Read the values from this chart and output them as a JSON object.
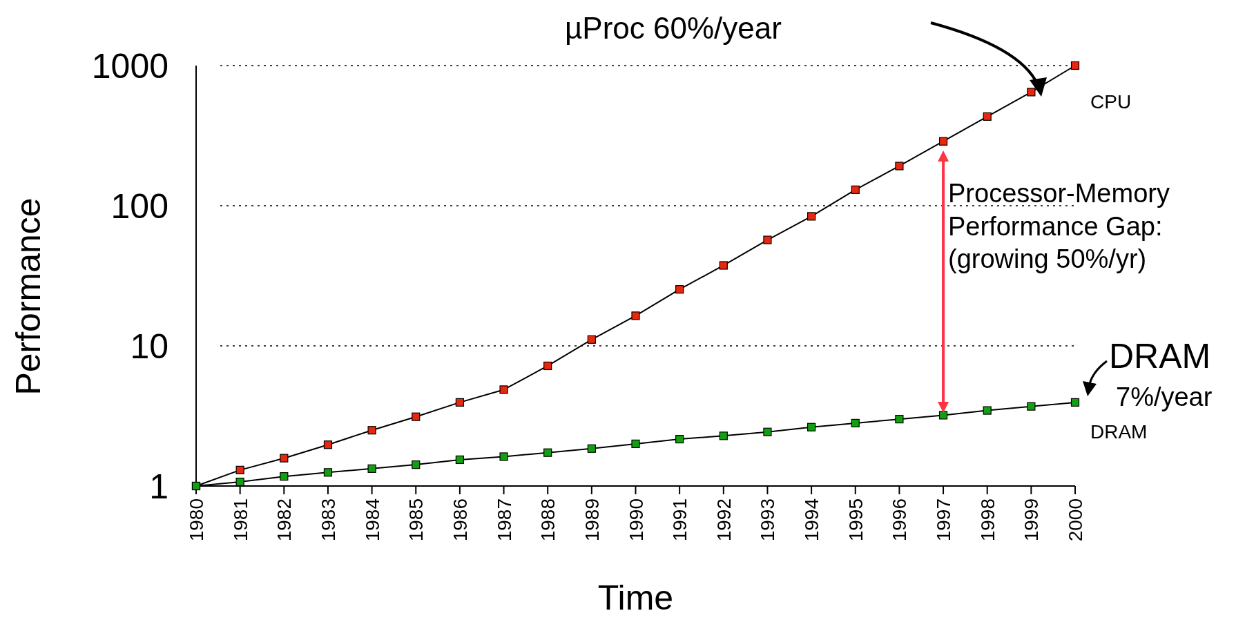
{
  "chart_data": {
    "type": "line",
    "xlabel": "Time",
    "ylabel": "Performance",
    "x": [
      1980,
      1981,
      1982,
      1983,
      1984,
      1985,
      1986,
      1987,
      1988,
      1989,
      1990,
      1991,
      1992,
      1993,
      1994,
      1995,
      1996,
      1997,
      1998,
      1999,
      2000
    ],
    "series": [
      {
        "name": "CPU",
        "color": "#e8280e",
        "values": [
          1,
          1.3,
          1.58,
          1.97,
          2.5,
          3.12,
          3.95,
          4.87,
          7.2,
          11.1,
          16.4,
          25.3,
          37.5,
          57,
          84,
          130,
          192,
          288,
          433,
          647,
          1000
        ]
      },
      {
        "name": "DRAM",
        "color": "#12a012",
        "values": [
          1,
          1.07,
          1.17,
          1.25,
          1.33,
          1.42,
          1.54,
          1.62,
          1.73,
          1.85,
          2.0,
          2.16,
          2.28,
          2.43,
          2.63,
          2.81,
          3.0,
          3.2,
          3.46,
          3.7,
          3.95
        ]
      }
    ],
    "xlim": [
      1980,
      2000
    ],
    "xticks": [
      1980,
      1981,
      1982,
      1983,
      1984,
      1985,
      1986,
      1987,
      1988,
      1989,
      1990,
      1991,
      1992,
      1993,
      1994,
      1995,
      1996,
      1997,
      1998,
      1999,
      2000
    ],
    "ylim": [
      1,
      1000
    ],
    "yticks": [
      1,
      10,
      100,
      1000
    ],
    "log": "y",
    "grid": "y",
    "marker": "square",
    "line_style": "solid",
    "annotations": [
      "µProc 60%/year",
      "Processor-Memory\nPerformance Gap:\n(growing 50%/yr)",
      "DRAM",
      "7%/year"
    ]
  }
}
